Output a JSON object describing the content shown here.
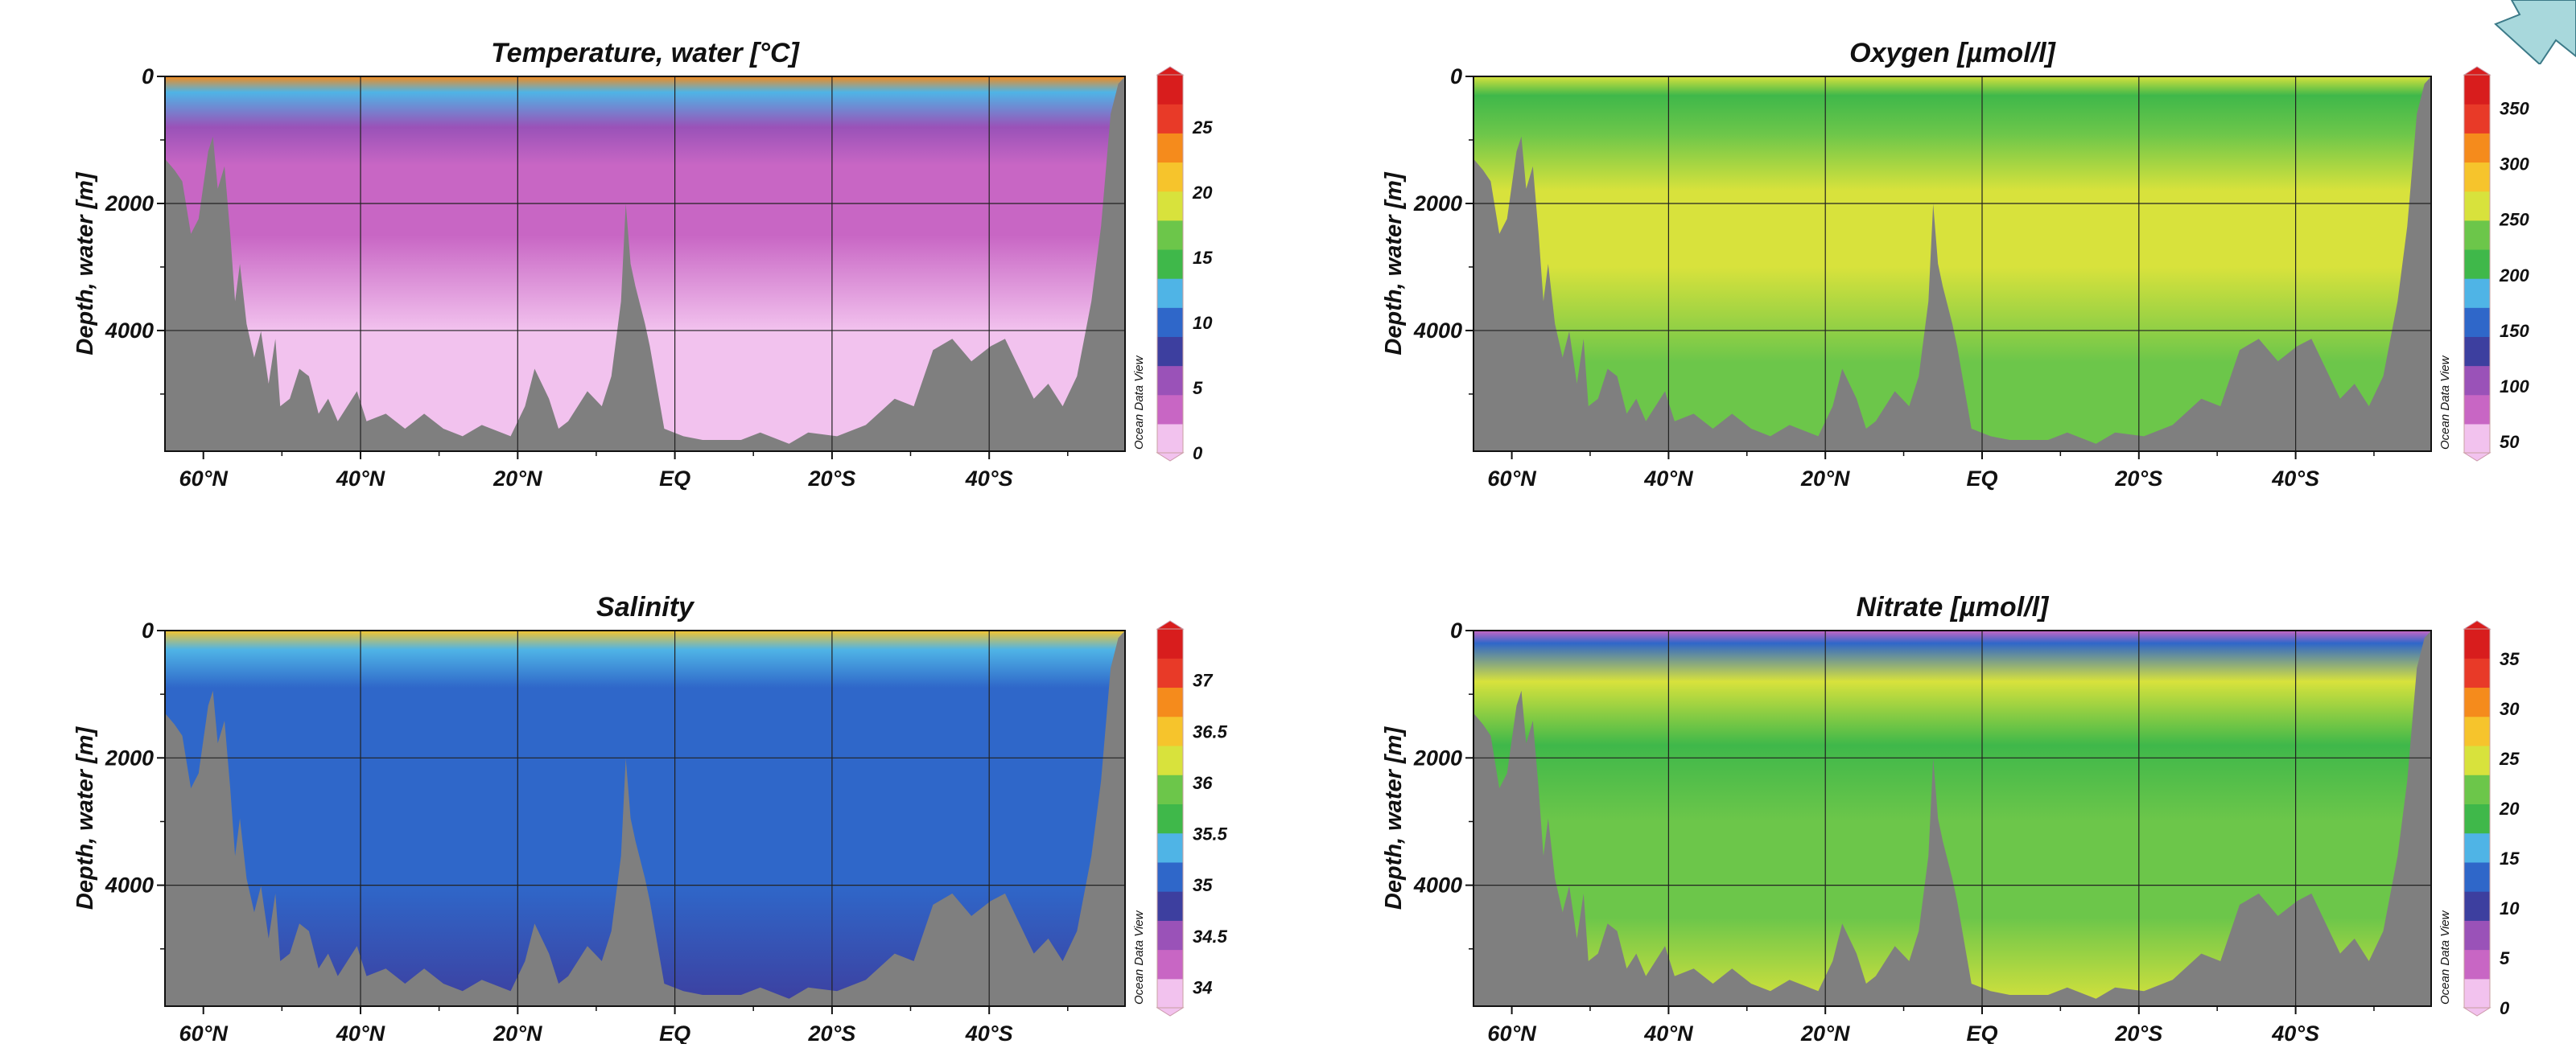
{
  "chart_data": [
    {
      "type": "heatmap",
      "title": "Temperature, water [°C]",
      "ylabel": "Depth, water [m]",
      "xlabel": "",
      "x_ticks": [
        "60°N",
        "40°N",
        "20°N",
        "EQ",
        "20°S",
        "40°S"
      ],
      "y_ticks": [
        "0",
        "2000",
        "4000"
      ],
      "ylim": [
        0,
        5900
      ],
      "colorbar": {
        "ticks": [
          "0",
          "5",
          "10",
          "15",
          "20",
          "25"
        ],
        "range": [
          0,
          29
        ]
      },
      "watermark": "Ocean Data View",
      "bands": [
        {
          "depth": 0,
          "value": 24
        },
        {
          "depth": 250,
          "value": 13
        },
        {
          "depth": 800,
          "value": 6
        },
        {
          "depth": 1400,
          "value": 4
        },
        {
          "depth": 2500,
          "value": 2.5
        },
        {
          "depth": 4000,
          "value": 1.6
        },
        {
          "depth": 5900,
          "value": 1.2
        }
      ]
    },
    {
      "type": "heatmap",
      "title": "Oxygen [µmol/l]",
      "ylabel": "Depth, water [m]",
      "xlabel": "",
      "x_ticks": [
        "60°N",
        "40°N",
        "20°N",
        "EQ",
        "20°S",
        "40°S"
      ],
      "y_ticks": [
        "0",
        "2000",
        "4000"
      ],
      "ylim": [
        0,
        5900
      ],
      "colorbar": {
        "ticks": [
          "50",
          "100",
          "150",
          "200",
          "250",
          "300",
          "350"
        ],
        "range": [
          40,
          380
        ]
      },
      "watermark": "Ocean Data View",
      "bands": [
        {
          "depth": 0,
          "value": 255
        },
        {
          "depth": 300,
          "value": 200
        },
        {
          "depth": 900,
          "value": 230
        },
        {
          "depth": 1800,
          "value": 268
        },
        {
          "depth": 3000,
          "value": 262
        },
        {
          "depth": 4500,
          "value": 245
        },
        {
          "depth": 5900,
          "value": 240
        }
      ]
    },
    {
      "type": "heatmap",
      "title": "Salinity",
      "ylabel": "Depth, water [m]",
      "xlabel": "",
      "x_ticks": [
        "60°N",
        "40°N",
        "20°N",
        "EQ",
        "20°S",
        "40°S"
      ],
      "y_ticks": [
        "0",
        "2000",
        "4000"
      ],
      "ylim": [
        0,
        5900
      ],
      "colorbar": {
        "ticks": [
          "34",
          "34.5",
          "35",
          "35.5",
          "36",
          "36.5",
          "37"
        ],
        "range": [
          33.8,
          37.5
        ]
      },
      "watermark": "Ocean Data View",
      "bands": [
        {
          "depth": 0,
          "value": 36.6
        },
        {
          "depth": 300,
          "value": 35.4
        },
        {
          "depth": 900,
          "value": 35.0
        },
        {
          "depth": 2000,
          "value": 35.05
        },
        {
          "depth": 4000,
          "value": 34.95
        },
        {
          "depth": 5900,
          "value": 34.85
        }
      ]
    },
    {
      "type": "heatmap",
      "title": "Nitrate [µmol/l]",
      "ylabel": "Depth, water [m]",
      "xlabel": "",
      "x_ticks": [
        "60°N",
        "40°N",
        "20°N",
        "EQ",
        "20°S",
        "40°S"
      ],
      "y_ticks": [
        "0",
        "2000",
        "4000"
      ],
      "ylim": [
        0,
        5900
      ],
      "colorbar": {
        "ticks": [
          "0",
          "5",
          "10",
          "15",
          "20",
          "25",
          "30",
          "35"
        ],
        "range": [
          0,
          38
        ]
      },
      "watermark": "Ocean Data View",
      "bands": [
        {
          "depth": 0,
          "value": 3
        },
        {
          "depth": 200,
          "value": 14
        },
        {
          "depth": 800,
          "value": 24
        },
        {
          "depth": 1800,
          "value": 20
        },
        {
          "depth": 3000,
          "value": 21
        },
        {
          "depth": 4500,
          "value": 23
        },
        {
          "depth": 5900,
          "value": 25
        }
      ]
    }
  ]
}
